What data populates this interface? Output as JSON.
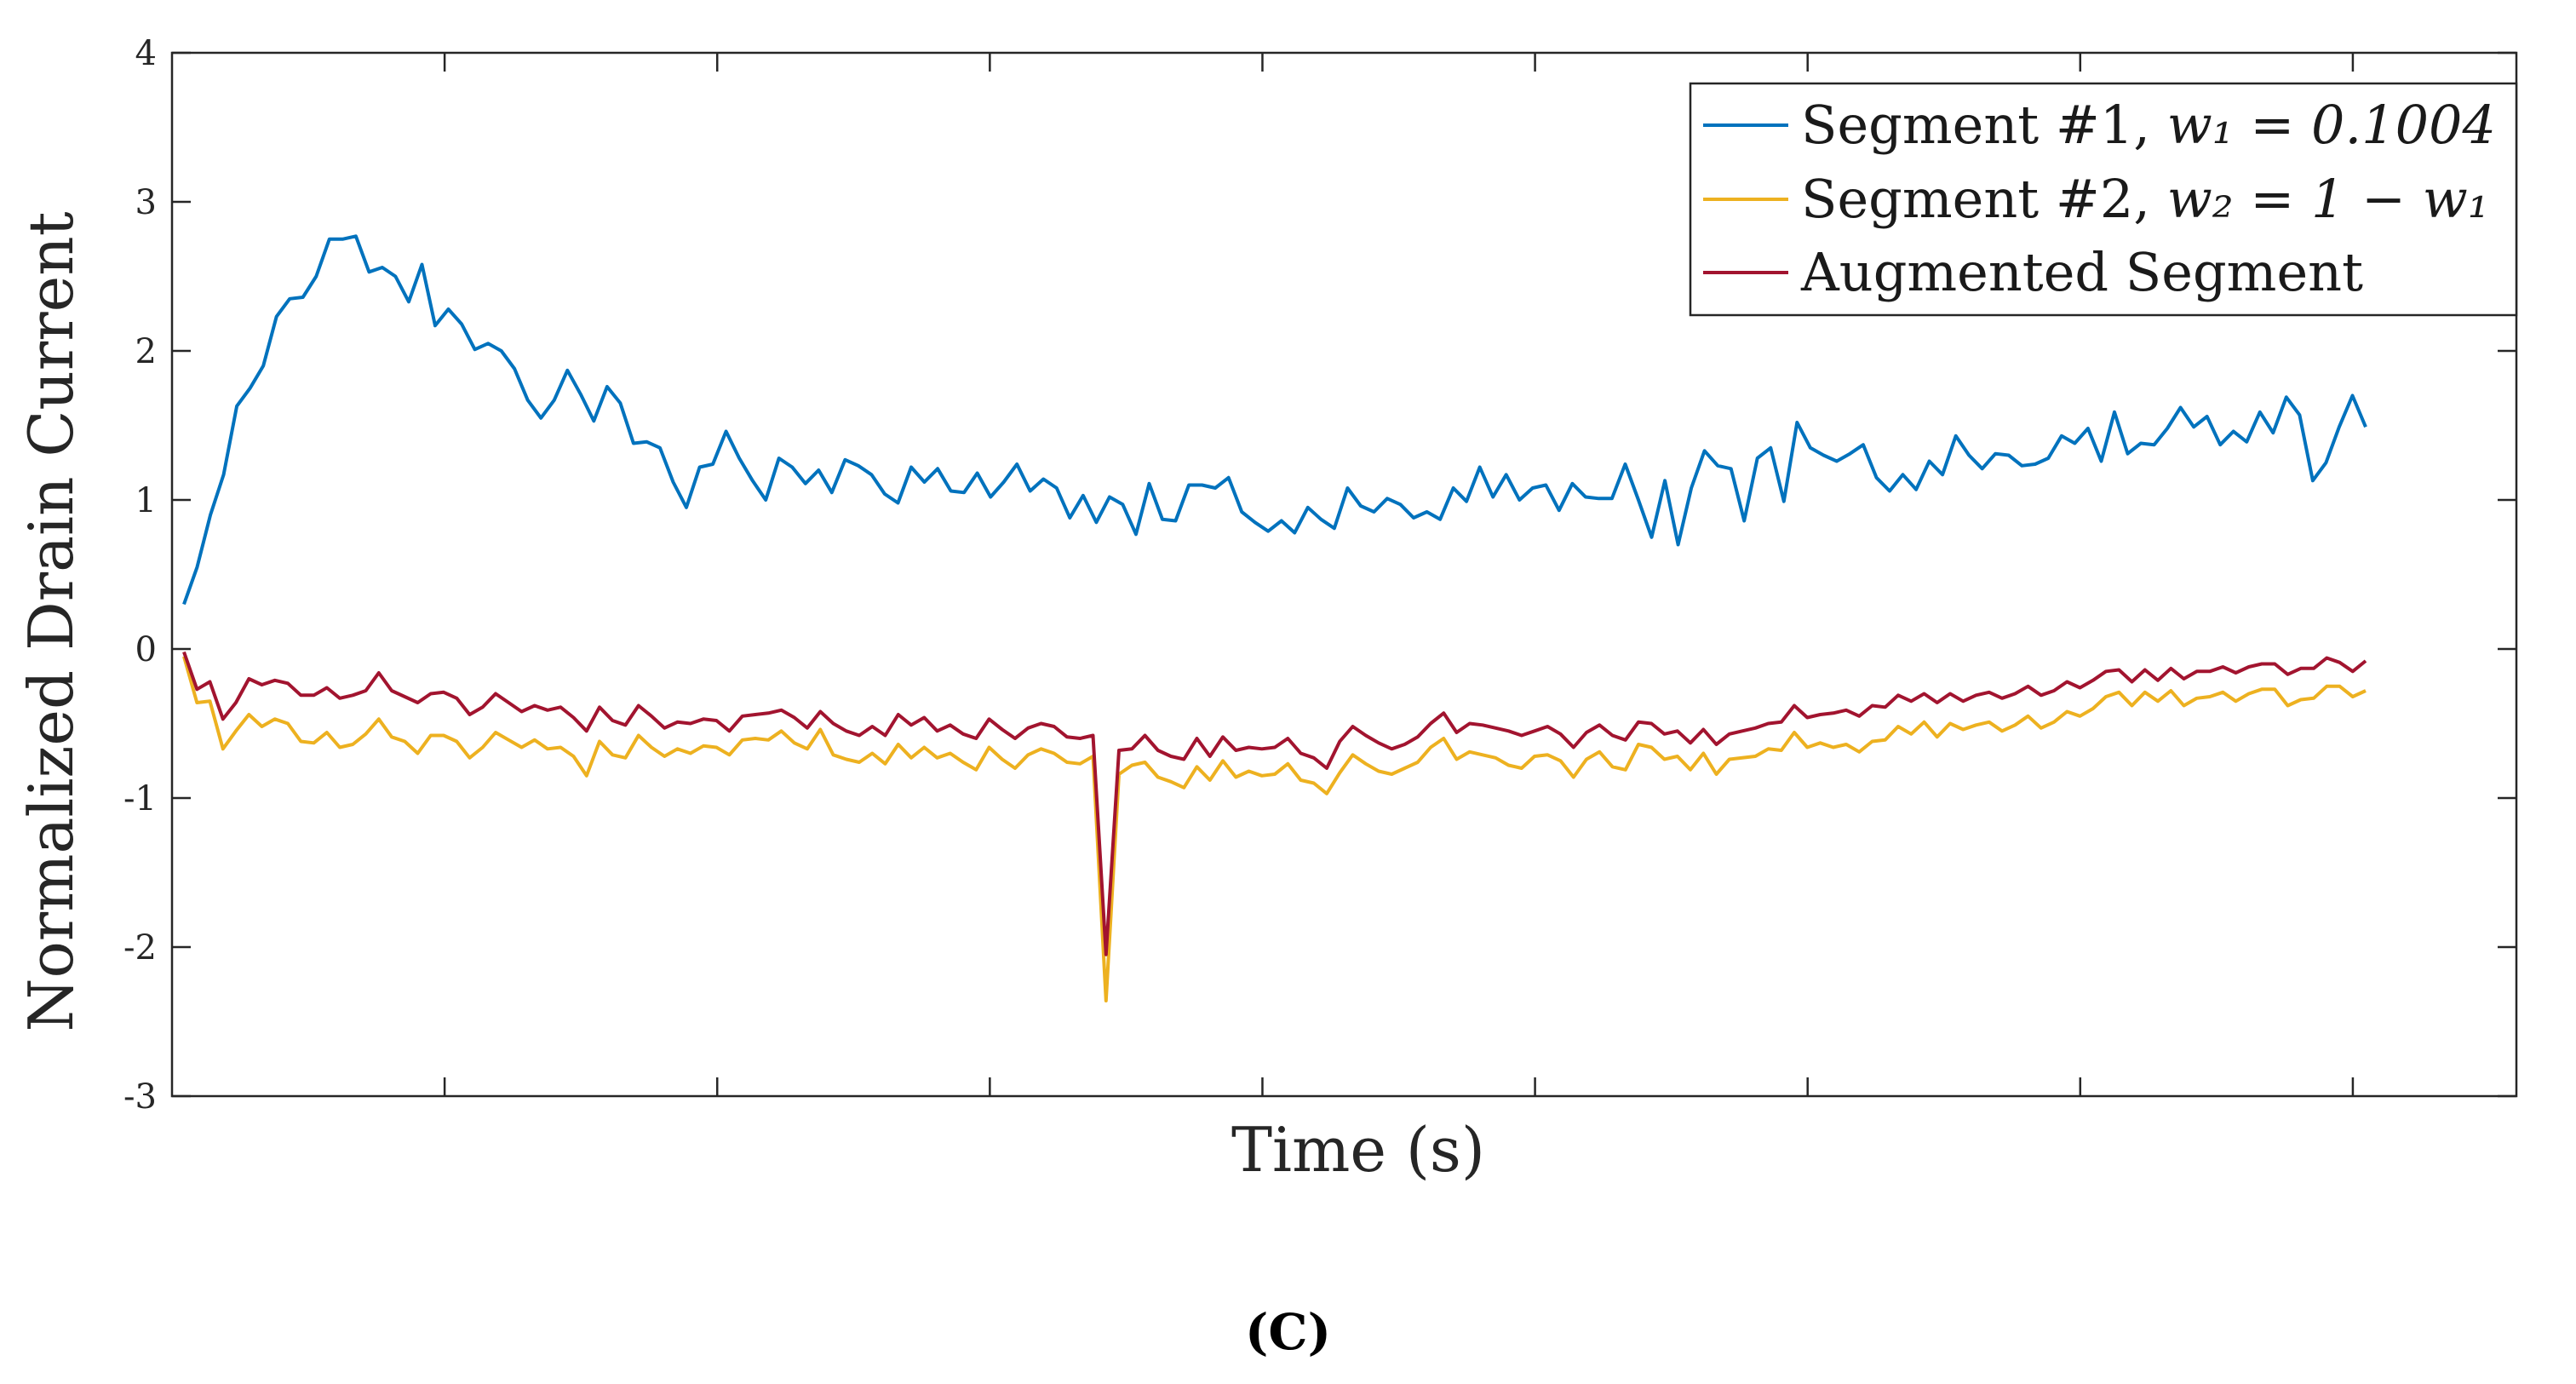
{
  "chart_data": {
    "type": "line",
    "xlabel": "Time (s)",
    "ylabel": "Normalized Drain Current",
    "ylim": [
      -3,
      4
    ],
    "yticks": [
      "-3",
      "-2",
      "-1",
      "0",
      "1",
      "2",
      "3",
      "4"
    ],
    "xtick_count": 8,
    "grid": false,
    "legend_position": "top-right",
    "legend": {
      "seg1_prefix": "Segment #1, ",
      "seg1_math": "w₁ =  0.1004",
      "seg2_prefix": "Segment #2, ",
      "seg2_math": "w₂ = 1 − w₁",
      "aug_label": "Augmented Segment"
    },
    "panel_label": "(C)",
    "series": [
      {
        "name": "Segment #1",
        "color": "#0072BD",
        "values": [
          0.3,
          0.55,
          0.9,
          1.17,
          1.63,
          1.75,
          1.9,
          2.23,
          2.35,
          2.36,
          2.5,
          2.75,
          2.75,
          2.77,
          2.53,
          2.56,
          2.5,
          2.33,
          2.58,
          2.17,
          2.28,
          2.18,
          2.01,
          2.05,
          2.0,
          1.88,
          1.67,
          1.55,
          1.67,
          1.87,
          1.71,
          1.53,
          1.76,
          1.65,
          1.38,
          1.39,
          1.35,
          1.12,
          0.95,
          1.22,
          1.24,
          1.46,
          1.28,
          1.13,
          1.0,
          1.28,
          1.22,
          1.11,
          1.2,
          1.05,
          1.27,
          1.23,
          1.17,
          1.04,
          0.98,
          1.22,
          1.12,
          1.21,
          1.06,
          1.05,
          1.18,
          1.02,
          1.12,
          1.24,
          1.06,
          1.14,
          1.08,
          0.88,
          1.03,
          0.85,
          1.02,
          0.97,
          0.77,
          1.11,
          0.87,
          0.86,
          1.1,
          1.1,
          1.08,
          1.15,
          0.92,
          0.85,
          0.79,
          0.86,
          0.78,
          0.95,
          0.87,
          0.81,
          1.08,
          0.96,
          0.92,
          1.01,
          0.97,
          0.88,
          0.92,
          0.87,
          1.08,
          0.99,
          1.22,
          1.02,
          1.17,
          1.0,
          1.08,
          1.1,
          0.93,
          1.11,
          1.02,
          1.01,
          1.01,
          1.24,
          1.0,
          0.75,
          1.13,
          0.7,
          1.08,
          1.33,
          1.23,
          1.21,
          0.86,
          1.28,
          1.35,
          0.99,
          1.52,
          1.35,
          1.3,
          1.26,
          1.31,
          1.37,
          1.15,
          1.06,
          1.17,
          1.07,
          1.26,
          1.17,
          1.43,
          1.3,
          1.21,
          1.31,
          1.3,
          1.23,
          1.24,
          1.28,
          1.43,
          1.38,
          1.48,
          1.26,
          1.59,
          1.31,
          1.38,
          1.37,
          1.48,
          1.62,
          1.49,
          1.56,
          1.37,
          1.46,
          1.39,
          1.59,
          1.45,
          1.69,
          1.57,
          1.13,
          1.25,
          1.49,
          1.7,
          1.49
        ]
      },
      {
        "name": "Segment #2",
        "color": "#EDB120",
        "values": [
          -0.05,
          -0.36,
          -0.35,
          -0.67,
          -0.55,
          -0.44,
          -0.52,
          -0.47,
          -0.5,
          -0.62,
          -0.63,
          -0.56,
          -0.66,
          -0.64,
          -0.57,
          -0.47,
          -0.59,
          -0.62,
          -0.7,
          -0.58,
          -0.58,
          -0.62,
          -0.73,
          -0.66,
          -0.56,
          -0.61,
          -0.66,
          -0.61,
          -0.67,
          -0.66,
          -0.72,
          -0.85,
          -0.62,
          -0.71,
          -0.73,
          -0.58,
          -0.66,
          -0.72,
          -0.67,
          -0.7,
          -0.65,
          -0.66,
          -0.71,
          -0.61,
          -0.6,
          -0.61,
          -0.55,
          -0.63,
          -0.67,
          -0.54,
          -0.71,
          -0.74,
          -0.76,
          -0.7,
          -0.77,
          -0.64,
          -0.73,
          -0.66,
          -0.73,
          -0.7,
          -0.76,
          -0.81,
          -0.66,
          -0.74,
          -0.8,
          -0.71,
          -0.67,
          -0.7,
          -0.76,
          -0.77,
          -0.72,
          -2.36,
          -0.84,
          -0.78,
          -0.76,
          -0.86,
          -0.89,
          -0.93,
          -0.79,
          -0.88,
          -0.75,
          -0.86,
          -0.82,
          -0.85,
          -0.84,
          -0.77,
          -0.88,
          -0.9,
          -0.97,
          -0.83,
          -0.71,
          -0.77,
          -0.82,
          -0.84,
          -0.8,
          -0.76,
          -0.66,
          -0.6,
          -0.74,
          -0.69,
          -0.71,
          -0.73,
          -0.78,
          -0.8,
          -0.72,
          -0.71,
          -0.75,
          -0.86,
          -0.74,
          -0.69,
          -0.79,
          -0.81,
          -0.64,
          -0.66,
          -0.74,
          -0.72,
          -0.81,
          -0.7,
          -0.84,
          -0.74,
          -0.73,
          -0.72,
          -0.67,
          -0.68,
          -0.56,
          -0.66,
          -0.63,
          -0.66,
          -0.64,
          -0.69,
          -0.62,
          -0.61,
          -0.52,
          -0.57,
          -0.49,
          -0.59,
          -0.5,
          -0.54,
          -0.51,
          -0.49,
          -0.55,
          -0.51,
          -0.45,
          -0.53,
          -0.49,
          -0.42,
          -0.45,
          -0.4,
          -0.32,
          -0.29,
          -0.38,
          -0.29,
          -0.35,
          -0.28,
          -0.38,
          -0.33,
          -0.32,
          -0.29,
          -0.35,
          -0.3,
          -0.27,
          -0.27,
          -0.38,
          -0.34,
          -0.33,
          -0.25,
          -0.25,
          -0.32,
          -0.28
        ]
      },
      {
        "name": "Augmented Segment",
        "color": "#A2142F",
        "values": [
          -0.02,
          -0.27,
          -0.22,
          -0.47,
          -0.36,
          -0.2,
          -0.24,
          -0.21,
          -0.23,
          -0.31,
          -0.31,
          -0.26,
          -0.33,
          -0.31,
          -0.28,
          -0.16,
          -0.28,
          -0.32,
          -0.36,
          -0.3,
          -0.29,
          -0.33,
          -0.44,
          -0.39,
          -0.3,
          -0.36,
          -0.42,
          -0.38,
          -0.41,
          -0.39,
          -0.46,
          -0.55,
          -0.39,
          -0.48,
          -0.51,
          -0.38,
          -0.45,
          -0.53,
          -0.49,
          -0.5,
          -0.47,
          -0.48,
          -0.55,
          -0.45,
          -0.44,
          -0.43,
          -0.41,
          -0.46,
          -0.53,
          -0.42,
          -0.5,
          -0.55,
          -0.58,
          -0.52,
          -0.58,
          -0.44,
          -0.51,
          -0.46,
          -0.55,
          -0.51,
          -0.57,
          -0.6,
          -0.47,
          -0.54,
          -0.6,
          -0.53,
          -0.5,
          -0.52,
          -0.59,
          -0.6,
          -0.58,
          -2.05,
          -0.68,
          -0.67,
          -0.58,
          -0.68,
          -0.72,
          -0.74,
          -0.6,
          -0.72,
          -0.59,
          -0.68,
          -0.66,
          -0.67,
          -0.66,
          -0.6,
          -0.7,
          -0.73,
          -0.8,
          -0.62,
          -0.52,
          -0.58,
          -0.63,
          -0.67,
          -0.64,
          -0.59,
          -0.5,
          -0.43,
          -0.56,
          -0.5,
          -0.51,
          -0.53,
          -0.55,
          -0.58,
          -0.55,
          -0.52,
          -0.57,
          -0.66,
          -0.56,
          -0.51,
          -0.58,
          -0.61,
          -0.49,
          -0.5,
          -0.57,
          -0.55,
          -0.63,
          -0.54,
          -0.64,
          -0.57,
          -0.55,
          -0.53,
          -0.5,
          -0.49,
          -0.38,
          -0.46,
          -0.44,
          -0.43,
          -0.41,
          -0.45,
          -0.38,
          -0.39,
          -0.31,
          -0.35,
          -0.3,
          -0.36,
          -0.3,
          -0.35,
          -0.31,
          -0.29,
          -0.33,
          -0.3,
          -0.25,
          -0.31,
          -0.28,
          -0.22,
          -0.26,
          -0.21,
          -0.15,
          -0.14,
          -0.22,
          -0.14,
          -0.21,
          -0.13,
          -0.2,
          -0.15,
          -0.15,
          -0.12,
          -0.16,
          -0.12,
          -0.1,
          -0.1,
          -0.17,
          -0.13,
          -0.13,
          -0.06,
          -0.09,
          -0.15,
          -0.08
        ]
      }
    ]
  }
}
